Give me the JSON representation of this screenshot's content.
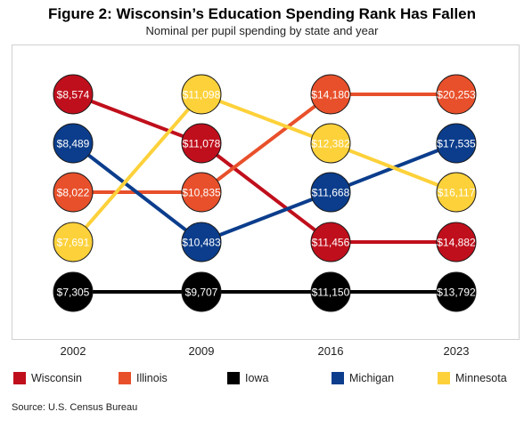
{
  "title": "Figure 2: Wisconsin’s Education Spending Rank Has Fallen",
  "subtitle": "Nominal per pupil spending by state and year",
  "source": "Source: U.S. Census Bureau",
  "chart_data": {
    "type": "bump",
    "categories": [
      "2002",
      "2009",
      "2016",
      "2023"
    ],
    "rank_order": "1 = highest spending",
    "series": [
      {
        "name": "Wisconsin",
        "color": "#c00f1c",
        "values": [
          8574,
          11078,
          11456,
          14882
        ],
        "labels": [
          "$8,574",
          "$11,078",
          "$11,456",
          "$14,882"
        ],
        "ranks": [
          1,
          2,
          4,
          4
        ]
      },
      {
        "name": "Illinois",
        "color": "#e8502b",
        "values": [
          8022,
          10835,
          14180,
          20253
        ],
        "labels": [
          "$8,022",
          "$10,835",
          "$14,180",
          "$20,253"
        ],
        "ranks": [
          3,
          3,
          1,
          1
        ]
      },
      {
        "name": "Iowa",
        "color": "#000000",
        "values": [
          7305,
          9707,
          11150,
          13792
        ],
        "labels": [
          "$7,305",
          "$9,707",
          "$11,150",
          "$13,792"
        ],
        "ranks": [
          5,
          5,
          5,
          5
        ]
      },
      {
        "name": "Michigan",
        "color": "#0b3d8c",
        "values": [
          8489,
          10483,
          11668,
          17535
        ],
        "labels": [
          "$8,489",
          "$10,483",
          "$11,668",
          "$17,535"
        ],
        "ranks": [
          2,
          4,
          3,
          2
        ]
      },
      {
        "name": "Minnesota",
        "color": "#fdd13a",
        "values": [
          7691,
          11098,
          12382,
          16117
        ],
        "labels": [
          "$7,691",
          "$11,098",
          "$12,382",
          "$16,117"
        ],
        "ranks": [
          4,
          1,
          2,
          3
        ]
      }
    ],
    "legend": "bottom",
    "grid": false
  }
}
